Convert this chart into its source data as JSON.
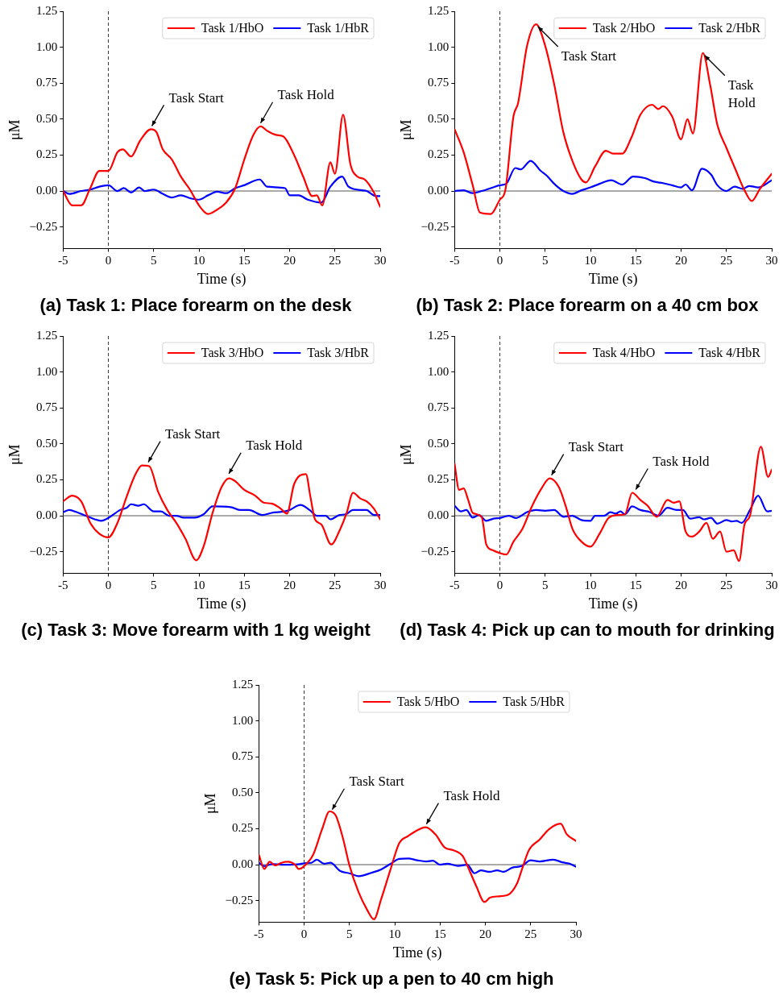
{
  "chart_data": [
    {
      "type": "line",
      "title": "(a) Task 1: Place forearm on the desk",
      "xlabel": "Time (s)",
      "ylabel": "μM",
      "xlim": [
        -5,
        30
      ],
      "ylim": [
        -0.4,
        1.25
      ],
      "xticks": [
        -5,
        0,
        5,
        10,
        15,
        20,
        25,
        30
      ],
      "yticks": [
        {
          "value": -0.25,
          "label": "−0.25"
        },
        {
          "value": 0,
          "label": "0.00"
        },
        {
          "value": 0.25,
          "label": "0.25"
        },
        {
          "value": 0.5,
          "label": "0.50"
        },
        {
          "value": 0.75,
          "label": "0.75"
        },
        {
          "value": 1,
          "label": "1.00"
        },
        {
          "value": 1.25,
          "label": "1.25"
        }
      ],
      "legend": "top right",
      "line_style": "solid",
      "ref_lines": [
        {
          "axis": "x",
          "value": 0,
          "color": "#333333",
          "line_style": "dashed"
        },
        {
          "axis": "y",
          "value": 0,
          "color": "#555555",
          "line_style": "solid"
        }
      ],
      "annotations": [
        {
          "text": "Task Start",
          "x": 4.8,
          "y": 0.43
        },
        {
          "text": "Task Hold",
          "x": 16.8,
          "y": 0.45
        }
      ],
      "series": [
        {
          "name": "Task 1/HbO",
          "color": "#ff0000",
          "x": [
            -5,
            -4,
            -3,
            -2,
            -1,
            0,
            1,
            1.6,
            2.5,
            3.5,
            4.7,
            5.3,
            6,
            7,
            8,
            9,
            10,
            11,
            12,
            13,
            14,
            15,
            16,
            16.8,
            17.5,
            18.5,
            19.3,
            20.5,
            21.5,
            22.5,
            23,
            23.6,
            24.5,
            25,
            25.9,
            26.7,
            27.5,
            28.3,
            29.3,
            30
          ],
          "values": [
            0,
            -0.1,
            -0.1,
            0.02,
            0.14,
            0.14,
            0.27,
            0.29,
            0.24,
            0.35,
            0.43,
            0.41,
            0.29,
            0.22,
            0.1,
            0.01,
            -0.1,
            -0.16,
            -0.13,
            -0.08,
            0.02,
            0.22,
            0.39,
            0.45,
            0.42,
            0.39,
            0.38,
            0.25,
            0.1,
            -0.035,
            -0.03,
            -0.1,
            0.2,
            0.12,
            0.53,
            0.19,
            0.1,
            0.08,
            -0.01,
            -0.11
          ]
        },
        {
          "name": "Task 1/HbR",
          "color": "#0000ff",
          "x": [
            -5,
            -4.3,
            -3,
            -2,
            -1,
            0,
            1,
            1.7,
            2.5,
            3.4,
            4,
            5,
            6,
            7,
            8,
            9,
            10,
            11,
            12,
            13,
            14,
            15,
            16.7,
            17.5,
            19.5,
            20,
            21,
            22,
            23.5,
            24.5,
            25.8,
            26.5,
            28,
            28.5,
            29.5,
            30
          ],
          "values": [
            0,
            -0.02,
            0,
            0.01,
            0.03,
            0.04,
            0,
            0.02,
            -0.01,
            0.025,
            0,
            0.01,
            -0.02,
            -0.045,
            -0.03,
            -0.05,
            -0.06,
            -0.03,
            -0.005,
            -0.015,
            0.02,
            0.04,
            0.08,
            0.03,
            0.02,
            -0.03,
            -0.03,
            -0.06,
            -0.08,
            0.03,
            0.1,
            0.03,
            0.005,
            0,
            -0.035,
            -0.035
          ]
        }
      ]
    },
    {
      "type": "line",
      "title": "(b) Task 2: Place forearm on a 40 cm box",
      "xlabel": "Time (s)",
      "ylabel": "μM",
      "xlim": [
        -5,
        30
      ],
      "ylim": [
        -0.4,
        1.25
      ],
      "xticks": [
        -5,
        0,
        5,
        10,
        15,
        20,
        25,
        30
      ],
      "yticks": [
        {
          "value": -0.25,
          "label": "−0.25"
        },
        {
          "value": 0,
          "label": "0.00"
        },
        {
          "value": 0.25,
          "label": "0.25"
        },
        {
          "value": 0.5,
          "label": "0.50"
        },
        {
          "value": 0.75,
          "label": "0.75"
        },
        {
          "value": 1,
          "label": "1.00"
        },
        {
          "value": 1.25,
          "label": "1.25"
        }
      ],
      "legend": "top right",
      "line_style": "solid",
      "ref_lines": [
        {
          "axis": "x",
          "value": 0,
          "color": "#333333",
          "line_style": "dashed"
        },
        {
          "axis": "y",
          "value": 0,
          "color": "#555555",
          "line_style": "solid"
        }
      ],
      "annotations": [
        {
          "text": "Task Start",
          "x": 4.2,
          "y": 1.16
        },
        {
          "text": "Task\nHold",
          "x": 22.6,
          "y": 0.96
        }
      ],
      "series": [
        {
          "name": "Task 2/HbO",
          "color": "#ff0000",
          "x": [
            -5,
            -4,
            -3,
            -2.2,
            -1,
            0,
            0.6,
            1.5,
            2,
            3,
            4,
            5,
            6,
            7,
            8,
            9,
            9.5,
            10.5,
            11.7,
            12.5,
            13.5,
            14.5,
            15.5,
            16.8,
            17.5,
            18,
            19,
            20,
            20.7,
            21.3,
            22.4,
            23.2,
            24,
            25,
            26,
            27,
            27.8,
            28.7,
            30
          ],
          "values": [
            0.43,
            0.27,
            0.04,
            -0.15,
            -0.16,
            -0.06,
            0.005,
            0.52,
            0.61,
            1.01,
            1.16,
            1.01,
            0.74,
            0.41,
            0.21,
            0.08,
            0.06,
            0.17,
            0.28,
            0.26,
            0.26,
            0.37,
            0.53,
            0.6,
            0.57,
            0.59,
            0.52,
            0.36,
            0.5,
            0.4,
            0.96,
            0.74,
            0.46,
            0.3,
            0.15,
            0.005,
            -0.07,
            0.015,
            0.12
          ]
        },
        {
          "name": "Task 2/HbR",
          "color": "#0000ff",
          "x": [
            -5,
            -4,
            -3,
            -2,
            -1,
            0,
            0.7,
            1.7,
            2.3,
            3.4,
            4.5,
            5.2,
            6,
            7,
            8,
            9,
            10,
            11,
            12.3,
            13.5,
            14.7,
            16,
            17,
            18,
            19,
            20,
            20.5,
            21.2,
            22.3,
            23.3,
            24,
            25,
            25.9,
            26.8,
            27.5,
            28.5,
            30
          ],
          "values": [
            0,
            0.005,
            -0.015,
            0,
            0.02,
            0.04,
            0.05,
            0.16,
            0.15,
            0.21,
            0.14,
            0.105,
            0.05,
            0,
            -0.02,
            0.005,
            0.025,
            0.05,
            0.075,
            0.045,
            0.1,
            0.09,
            0.065,
            0.055,
            0.04,
            0.025,
            0.045,
            0.005,
            0.155,
            0.115,
            0.04,
            0,
            0.03,
            0.015,
            0.035,
            0.025,
            0.075
          ]
        }
      ]
    },
    {
      "type": "line",
      "title": "(c) Task 3: Move forearm with 1 kg weight",
      "xlabel": "Time (s)",
      "ylabel": "μM",
      "xlim": [
        -5,
        30
      ],
      "ylim": [
        -0.4,
        1.25
      ],
      "xticks": [
        -5,
        0,
        5,
        10,
        15,
        20,
        25,
        30
      ],
      "yticks": [
        {
          "value": -0.25,
          "label": "−0.25"
        },
        {
          "value": 0,
          "label": "0.00"
        },
        {
          "value": 0.25,
          "label": "0.25"
        },
        {
          "value": 0.5,
          "label": "0.50"
        },
        {
          "value": 0.75,
          "label": "0.75"
        },
        {
          "value": 1,
          "label": "1.00"
        },
        {
          "value": 1.25,
          "label": "1.25"
        }
      ],
      "legend": "top right",
      "line_style": "solid",
      "ref_lines": [
        {
          "axis": "x",
          "value": 0,
          "color": "#333333",
          "line_style": "dashed"
        },
        {
          "axis": "y",
          "value": 0,
          "color": "#555555",
          "line_style": "solid"
        }
      ],
      "annotations": [
        {
          "text": "Task Start",
          "x": 4.4,
          "y": 0.35
        },
        {
          "text": "Task Hold",
          "x": 13.3,
          "y": 0.27
        }
      ],
      "series": [
        {
          "name": "Task 3/HbO",
          "color": "#ff0000",
          "x": [
            -5,
            -4,
            -3,
            -2,
            -1,
            0,
            1,
            2,
            3,
            3.7,
            4.5,
            5.5,
            6.5,
            7.5,
            8.5,
            9.7,
            10.5,
            11.5,
            12.5,
            13.3,
            14,
            15,
            16.2,
            17.2,
            18,
            19,
            19.7,
            20.5,
            21.8,
            22.3,
            22.8,
            23.5,
            24.6,
            25.5,
            26.3,
            27,
            27.8,
            28.5,
            29.3,
            30
          ],
          "values": [
            0.1,
            0.14,
            0.1,
            -0.05,
            -0.125,
            -0.15,
            -0.05,
            0.13,
            0.29,
            0.35,
            0.345,
            0.165,
            0.04,
            -0.05,
            -0.16,
            -0.31,
            -0.215,
            0.02,
            0.2,
            0.26,
            0.24,
            0.18,
            0.14,
            0.09,
            0.085,
            0.05,
            0.015,
            0.22,
            0.29,
            0.13,
            -0.025,
            -0.06,
            -0.2,
            -0.105,
            0.02,
            0.16,
            0.12,
            0.1,
            0.05,
            -0.025
          ]
        },
        {
          "name": "Task 3/HbR",
          "color": "#0000ff",
          "x": [
            -5,
            -4.3,
            -3.5,
            -2.5,
            -1.5,
            -0.8,
            0,
            1.3,
            2,
            2.5,
            3.3,
            3.9,
            5,
            5.8,
            6.7,
            7.5,
            8.3,
            9.5,
            10.5,
            11.5,
            13.5,
            14.5,
            15.5,
            17,
            18,
            19.5,
            20,
            21.2,
            22.2,
            23,
            24,
            24.5,
            25.5,
            26.2,
            27,
            28.5,
            29.3,
            30
          ],
          "values": [
            0.025,
            0.04,
            0.025,
            0,
            -0.025,
            -0.035,
            -0.015,
            0.04,
            0.055,
            0.08,
            0.07,
            0.08,
            0.03,
            0.03,
            0,
            0,
            -0.013,
            -0.013,
            0.01,
            0.065,
            0.06,
            0.04,
            0.04,
            0.005,
            0.02,
            0.03,
            0.04,
            0.075,
            0.04,
            0,
            0,
            -0.025,
            0.005,
            0.01,
            0.04,
            0.04,
            0.005,
            0.005
          ]
        }
      ]
    },
    {
      "type": "line",
      "title": "(d) Task 4: Pick up can to mouth for drinking",
      "xlabel": "Time (s)",
      "ylabel": "μM",
      "xlim": [
        -5,
        30
      ],
      "ylim": [
        -0.4,
        1.25
      ],
      "xticks": [
        -5,
        0,
        5,
        10,
        15,
        20,
        25,
        30
      ],
      "yticks": [
        {
          "value": -0.25,
          "label": "−0.25"
        },
        {
          "value": 0,
          "label": "0.00"
        },
        {
          "value": 0.25,
          "label": "0.25"
        },
        {
          "value": 0.5,
          "label": "0.50"
        },
        {
          "value": 0.75,
          "label": "0.75"
        },
        {
          "value": 1,
          "label": "1.00"
        },
        {
          "value": 1.25,
          "label": "1.25"
        }
      ],
      "legend": "top right",
      "line_style": "solid",
      "ref_lines": [
        {
          "axis": "x",
          "value": 0,
          "color": "#333333",
          "line_style": "dashed"
        },
        {
          "axis": "y",
          "value": 0,
          "color": "#555555",
          "line_style": "solid"
        }
      ],
      "annotations": [
        {
          "text": "Task Start",
          "x": 5.7,
          "y": 0.26
        },
        {
          "text": "Task Hold",
          "x": 15,
          "y": 0.16
        }
      ],
      "series": [
        {
          "name": "Task 4/HbO",
          "color": "#ff0000",
          "x": [
            -5,
            -4.5,
            -4,
            -3.5,
            -3,
            -2,
            -1.5,
            -0.8,
            0,
            0.7,
            1.5,
            2.5,
            3.5,
            4.5,
            5.5,
            6.5,
            7.3,
            8,
            9,
            10,
            11,
            12,
            13,
            13.8,
            14.6,
            15.5,
            16.3,
            17.3,
            18.5,
            19.2,
            19.8,
            20.5,
            21.2,
            22,
            22.8,
            23.5,
            24.3,
            25,
            25.8,
            26.4,
            27,
            27.6,
            28.8,
            29.6,
            30
          ],
          "values": [
            0.36,
            0.18,
            0.19,
            0.11,
            0.02,
            -0.01,
            -0.2,
            -0.24,
            -0.26,
            -0.27,
            -0.18,
            -0.09,
            0.06,
            0.18,
            0.26,
            0.2,
            0.06,
            -0.09,
            -0.18,
            -0.215,
            -0.125,
            -0.015,
            0.005,
            0.01,
            0.16,
            0.11,
            0.07,
            -0.007,
            0.11,
            0.09,
            0.1,
            -0.11,
            -0.145,
            -0.11,
            -0.05,
            -0.16,
            -0.11,
            -0.25,
            -0.24,
            -0.315,
            -0.06,
            0,
            0.48,
            0.27,
            0.32
          ]
        },
        {
          "name": "Task 4/HbR",
          "color": "#0000ff",
          "x": [
            -5,
            -4.3,
            -3.7,
            -3,
            -2.3,
            -1.5,
            -0.7,
            0,
            1,
            1.8,
            3,
            4,
            5,
            6,
            7,
            8,
            9,
            10,
            10.5,
            11.5,
            12.2,
            12.8,
            13.3,
            13.8,
            14.6,
            15.5,
            16.5,
            17.5,
            18.5,
            19.5,
            20.2,
            21,
            22,
            22.5,
            23.3,
            24,
            25,
            25.6,
            26.1,
            26.7,
            27.6,
            28.5,
            29.5,
            30
          ],
          "values": [
            0.07,
            0.03,
            0.04,
            -0.013,
            0.005,
            -0.035,
            -0.02,
            -0.016,
            0,
            -0.016,
            0.025,
            0.04,
            0.035,
            0.04,
            -0.007,
            0,
            -0.03,
            -0.035,
            0,
            0,
            0.025,
            0.015,
            0.03,
            0.01,
            0.065,
            0.04,
            0.027,
            0,
            0.055,
            0.04,
            0.04,
            -0.02,
            -0.01,
            -0.025,
            -0.015,
            -0.055,
            -0.03,
            -0.04,
            -0.035,
            -0.05,
            0.04,
            0.14,
            0.03,
            0.035
          ]
        }
      ]
    },
    {
      "type": "line",
      "title": "(e) Task 5: Pick up a pen to 40 cm high",
      "xlabel": "Time (s)",
      "ylabel": "μM",
      "xlim": [
        -5,
        30
      ],
      "ylim": [
        -0.4,
        1.25
      ],
      "xticks": [
        -5,
        0,
        5,
        10,
        15,
        20,
        25,
        30
      ],
      "yticks": [
        {
          "value": -0.25,
          "label": "−0.25"
        },
        {
          "value": 0,
          "label": "0.00"
        },
        {
          "value": 0.25,
          "label": "0.25"
        },
        {
          "value": 0.5,
          "label": "0.50"
        },
        {
          "value": 0.75,
          "label": "0.75"
        },
        {
          "value": 1,
          "label": "1.00"
        },
        {
          "value": 1.25,
          "label": "1.25"
        }
      ],
      "legend": "top right",
      "line_style": "solid",
      "ref_lines": [
        {
          "axis": "x",
          "value": 0,
          "color": "#333333",
          "line_style": "dashed"
        },
        {
          "axis": "y",
          "value": 0,
          "color": "#555555",
          "line_style": "solid"
        }
      ],
      "annotations": [
        {
          "text": "Task Start",
          "x": 3.1,
          "y": 0.36
        },
        {
          "text": "Task Hold",
          "x": 13.5,
          "y": 0.26
        }
      ],
      "series": [
        {
          "name": "Task 5/HbO",
          "color": "#ff0000",
          "x": [
            -5,
            -4.4,
            -3.8,
            -3.2,
            -2.5,
            -1.8,
            -1,
            -0.6,
            0,
            1,
            2,
            2.8,
            3.5,
            4.3,
            5,
            6,
            7,
            7.7,
            8.5,
            9.5,
            10.5,
            11.5,
            12.5,
            13.4,
            14.5,
            15.5,
            16.5,
            17.5,
            18,
            19,
            19.9,
            20.5,
            21.5,
            22.5,
            23.5,
            24,
            24.8,
            26,
            27,
            28.3,
            29,
            30
          ],
          "values": [
            0.07,
            -0.03,
            0.02,
            -0.005,
            0.013,
            0.02,
            0,
            -0.03,
            -0.01,
            0.07,
            0.25,
            0.37,
            0.34,
            0.18,
            -0.005,
            -0.19,
            -0.32,
            -0.38,
            -0.24,
            -0.04,
            0.15,
            0.2,
            0.24,
            0.26,
            0.21,
            0.12,
            0.1,
            0.06,
            -0.005,
            -0.15,
            -0.26,
            -0.23,
            -0.22,
            -0.21,
            -0.13,
            -0.04,
            0.1,
            0.175,
            0.245,
            0.285,
            0.21,
            0.165
          ]
        },
        {
          "name": "Task 5/HbR",
          "color": "#0000ff",
          "x": [
            -5,
            -4.4,
            -3.5,
            -2.5,
            -1.5,
            -0.5,
            0,
            0.8,
            1.4,
            2.2,
            2.9,
            4,
            5,
            6,
            7.5,
            8.5,
            9.5,
            10.5,
            11.5,
            12.5,
            13.5,
            14.2,
            15,
            15.8,
            17,
            18,
            18.8,
            19.5,
            20.5,
            21.3,
            22,
            23,
            24,
            25,
            26,
            27.5,
            28.5,
            29.3,
            30
          ],
          "values": [
            0.013,
            -0.01,
            0.004,
            0,
            0,
            0.004,
            0.01,
            0.013,
            0.035,
            0.007,
            0.013,
            -0.045,
            -0.06,
            -0.08,
            -0.055,
            -0.033,
            0.004,
            0.04,
            0.043,
            0.03,
            0.022,
            0.027,
            0,
            0.007,
            -0.009,
            0,
            -0.06,
            -0.04,
            -0.05,
            -0.04,
            -0.05,
            -0.02,
            -0.01,
            0.03,
            0.022,
            0.035,
            0.016,
            0.007,
            -0.015
          ]
        }
      ]
    }
  ]
}
